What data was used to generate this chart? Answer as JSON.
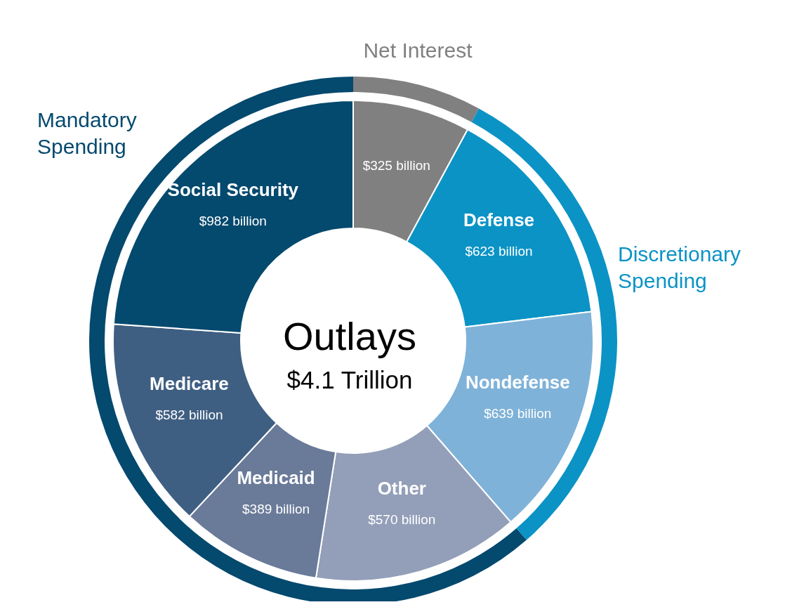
{
  "chart_data": [
    {
      "type": "donut",
      "title": "Outlays",
      "subtitle": "$4.1 Trillion",
      "categories": [
        null,
        "Defense",
        "Nondefense",
        "Other",
        "Medicaid",
        "Medicare",
        "Social Security"
      ],
      "values": [
        325,
        623,
        639,
        570,
        389,
        582,
        982
      ],
      "colors": [
        "#808080",
        "#0b93c5",
        "#7fb2d8",
        "#939fb8",
        "#6a7a99",
        "#3f5f82",
        "#04496e"
      ],
      "value_labels": [
        "$325 billion",
        "$623 billion",
        "$639 billion",
        "$570 billion",
        "$389 billion",
        "$582 billion",
        "$982 billion"
      ]
    },
    {
      "type": "donut",
      "categories": [
        "Net Interest",
        "Discretionary Spending",
        "Mandatory Spending"
      ],
      "values": [
        7.9,
        30.7,
        61.4
      ],
      "colors": [
        "#808080",
        "#0b93c5",
        "#04496e"
      ]
    }
  ]
}
